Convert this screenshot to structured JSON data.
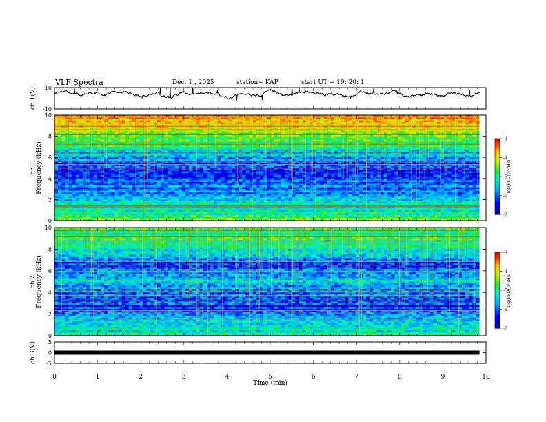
{
  "header": {
    "title": "VLF Spectra",
    "date": "Dec. 1 , 2025",
    "station": "station= KAP",
    "start": "start UT =  19: 20: 1"
  },
  "chart_data": [
    {
      "type": "line",
      "name": "ch1-waveform",
      "ylabel": "ch.1(V)",
      "ylim": [
        -10,
        10
      ],
      "yticks": [
        "10",
        "-10"
      ],
      "xlim": [
        0,
        10
      ],
      "trace_baseline": 4,
      "trace_end": 9.85
    },
    {
      "type": "heatmap",
      "name": "ch1-spectrogram",
      "ylabel": "ch.1",
      "ylabel2": "Frequency (kHz)",
      "ylim": [
        0,
        10
      ],
      "yticks": [
        "0",
        "2",
        "4",
        "6",
        "8",
        "10"
      ],
      "xlim": [
        0,
        10
      ],
      "data_end": 9.85,
      "colorbar": {
        "label": "log(PSD)(V²/Hz)",
        "range": [
          -7,
          -3
        ],
        "ticks": [
          "-3",
          "-4",
          "-5",
          "-6",
          "-7"
        ]
      },
      "band_profile": [
        {
          "f": 0,
          "v": -4.6
        },
        {
          "f": 0.5,
          "v": -5.0
        },
        {
          "f": 1.5,
          "v": -5.3
        },
        {
          "f": 2.5,
          "v": -5.7
        },
        {
          "f": 3.5,
          "v": -6.0
        },
        {
          "f": 4.5,
          "v": -6.4
        },
        {
          "f": 5.5,
          "v": -6.1
        },
        {
          "f": 6.5,
          "v": -5.3
        },
        {
          "f": 7.5,
          "v": -4.8
        },
        {
          "f": 8.5,
          "v": -4.3
        },
        {
          "f": 9.5,
          "v": -3.8
        },
        {
          "f": 10,
          "v": -3.6
        }
      ]
    },
    {
      "type": "heatmap",
      "name": "ch2-spectrogram",
      "ylabel": "ch.2",
      "ylabel2": "Frequency (kHz)",
      "ylim": [
        0,
        10
      ],
      "yticks": [
        "0",
        "2",
        "4",
        "6",
        "8",
        "10"
      ],
      "xlim": [
        0,
        10
      ],
      "data_end": 9.85,
      "colorbar": {
        "label": "log(PSD)(V²/Hz)",
        "range": [
          -7,
          -3
        ],
        "ticks": [
          "-3",
          "-4",
          "-5",
          "-6",
          "-7"
        ]
      },
      "band_profile": [
        {
          "f": 0,
          "v": -5.2
        },
        {
          "f": 0.5,
          "v": -5.3
        },
        {
          "f": 1.5,
          "v": -5.4
        },
        {
          "f": 2.5,
          "v": -6.3
        },
        {
          "f": 3.5,
          "v": -6.0
        },
        {
          "f": 4.5,
          "v": -5.6
        },
        {
          "f": 5.5,
          "v": -5.5
        },
        {
          "f": 6.5,
          "v": -6.2
        },
        {
          "f": 7.5,
          "v": -5.4
        },
        {
          "f": 8.5,
          "v": -5.0
        },
        {
          "f": 9.5,
          "v": -4.8
        },
        {
          "f": 10,
          "v": -4.7
        }
      ]
    },
    {
      "type": "line",
      "name": "ch3-waveform",
      "ylabel": "ch.3(V)",
      "ylim": [
        -5,
        5
      ],
      "yticks": [
        "5",
        "0",
        "-5"
      ],
      "xlim": [
        0,
        10
      ],
      "trace_baseline": 0,
      "trace_end": 9.85,
      "xlabel": "Time (min)",
      "xticks": [
        "0",
        "1",
        "2",
        "3",
        "4",
        "5",
        "6",
        "7",
        "8",
        "9",
        "10"
      ]
    }
  ]
}
